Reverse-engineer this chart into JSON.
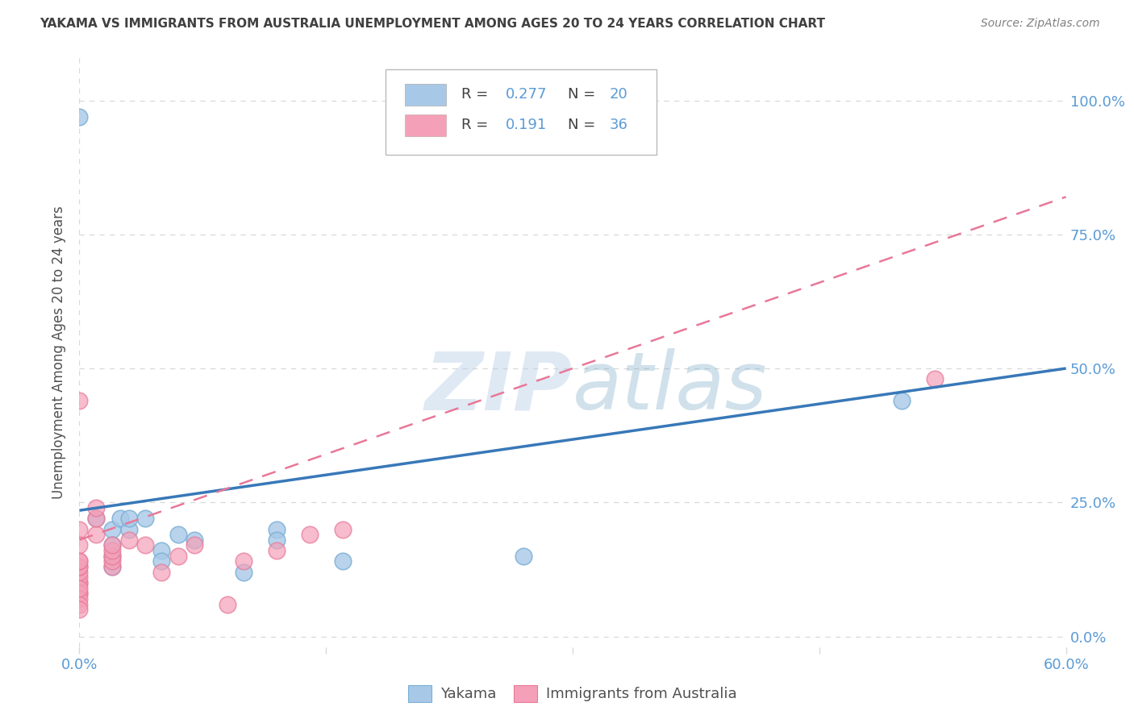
{
  "title": "YAKAMA VS IMMIGRANTS FROM AUSTRALIA UNEMPLOYMENT AMONG AGES 20 TO 24 YEARS CORRELATION CHART",
  "source": "Source: ZipAtlas.com",
  "ylabel": "Unemployment Among Ages 20 to 24 years",
  "xlim": [
    0.0,
    0.6
  ],
  "ylim": [
    -0.02,
    1.08
  ],
  "xticks": [
    0.0,
    0.15,
    0.3,
    0.45,
    0.6
  ],
  "yticks": [
    0.0,
    0.25,
    0.5,
    0.75,
    1.0
  ],
  "ytick_labels": [
    "0.0%",
    "25.0%",
    "50.0%",
    "75.0%",
    "100.0%"
  ],
  "watermark_zip": "ZIP",
  "watermark_atlas": "atlas",
  "legend_R1": "0.277",
  "legend_N1": "20",
  "legend_R2": "0.191",
  "legend_N2": "36",
  "blue_scatter_color": "#a8c8e8",
  "blue_scatter_edge": "#7bafd4",
  "pink_scatter_color": "#f4a0b8",
  "pink_scatter_edge": "#e87898",
  "blue_line_color": "#3878b8",
  "pink_line_color": "#e87898",
  "axis_label_color": "#5b9bd5",
  "title_color": "#404040",
  "source_color": "#808080",
  "ylabel_color": "#505050",
  "grid_color": "#d8d8d8",
  "background_color": "#ffffff",
  "yakama_x": [
    0.0,
    0.01,
    0.02,
    0.02,
    0.02,
    0.02,
    0.025,
    0.03,
    0.03,
    0.04,
    0.05,
    0.05,
    0.06,
    0.07,
    0.1,
    0.12,
    0.12,
    0.16,
    0.27,
    0.5
  ],
  "yakama_y": [
    0.97,
    0.22,
    0.2,
    0.17,
    0.15,
    0.13,
    0.22,
    0.2,
    0.22,
    0.22,
    0.16,
    0.14,
    0.19,
    0.18,
    0.12,
    0.2,
    0.18,
    0.14,
    0.15,
    0.44
  ],
  "aus_x": [
    0.0,
    0.0,
    0.0,
    0.0,
    0.0,
    0.0,
    0.0,
    0.0,
    0.0,
    0.0,
    0.0,
    0.0,
    0.0,
    0.0,
    0.0,
    0.01,
    0.01,
    0.01,
    0.02,
    0.02,
    0.02,
    0.02,
    0.02,
    0.03,
    0.04,
    0.05,
    0.06,
    0.07,
    0.09,
    0.1,
    0.12,
    0.14,
    0.16,
    0.52,
    0.0,
    0.0
  ],
  "aus_y": [
    0.44,
    0.1,
    0.1,
    0.11,
    0.12,
    0.13,
    0.13,
    0.14,
    0.14,
    0.08,
    0.08,
    0.07,
    0.06,
    0.05,
    0.09,
    0.19,
    0.22,
    0.24,
    0.13,
    0.14,
    0.15,
    0.16,
    0.17,
    0.18,
    0.17,
    0.12,
    0.15,
    0.17,
    0.06,
    0.14,
    0.16,
    0.19,
    0.2,
    0.48,
    0.2,
    0.17
  ],
  "blue_line_x0": 0.0,
  "blue_line_x1": 0.6,
  "blue_line_y0": 0.235,
  "blue_line_y1": 0.5,
  "pink_line_x0": 0.0,
  "pink_line_x1": 0.6,
  "pink_line_y0": 0.18,
  "pink_line_y1": 0.82
}
